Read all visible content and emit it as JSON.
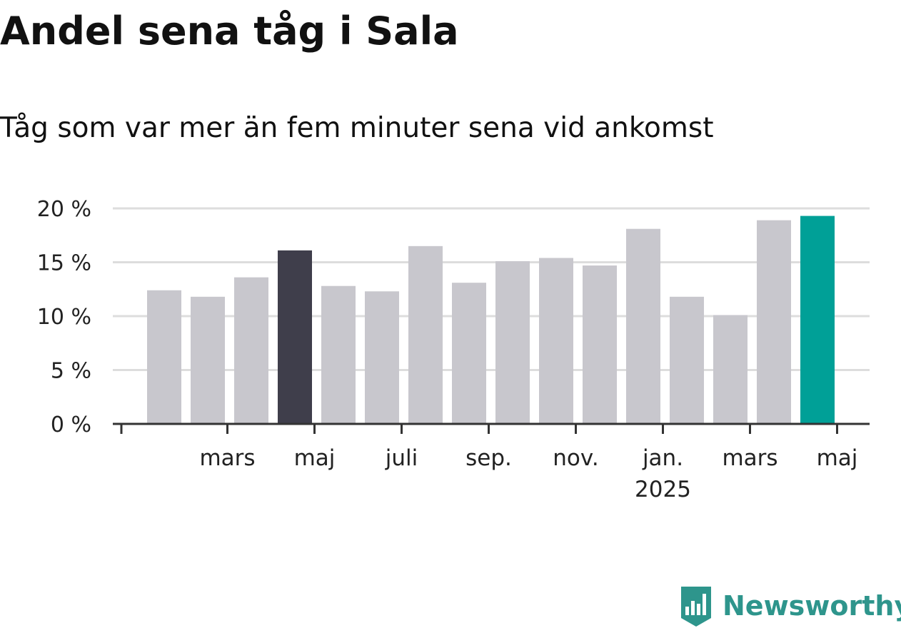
{
  "title": "Andel sena tåg i Sala",
  "subtitle": "Tåg som var mer än fem minuter sena vid ankomst",
  "brand": {
    "name": "Newsworthy",
    "icon": "newsworthy-logo-icon",
    "color": "#2e958c"
  },
  "colors": {
    "default_bar": "#c8c7cd",
    "highlight_bar": "#3f3e4b",
    "latest_bar": "#00a097",
    "grid": "#dddddd",
    "axis": "#333333"
  },
  "chart_data": {
    "type": "bar",
    "categories": [
      "2024-02",
      "2024-03",
      "2024-04",
      "2024-05",
      "2024-06",
      "2024-07",
      "2024-08",
      "2024-09",
      "2024-10",
      "2024-11",
      "2024-12",
      "2025-01",
      "2025-02",
      "2025-03",
      "2025-04",
      "2025-05"
    ],
    "values": [
      12.4,
      11.8,
      13.6,
      16.1,
      12.8,
      12.3,
      16.5,
      13.1,
      15.1,
      15.4,
      14.7,
      18.1,
      11.8,
      10.1,
      18.9,
      19.3
    ],
    "highlight": {
      "2024-05": "#3f3e4b",
      "2025-05": "#00a097"
    },
    "ylim": [
      0,
      20
    ],
    "yticks": [
      {
        "value": 0,
        "label": "0 %"
      },
      {
        "value": 5,
        "label": "5 %"
      },
      {
        "value": 10,
        "label": "10 %"
      },
      {
        "value": 15,
        "label": "15 %"
      },
      {
        "value": 20,
        "label": "20 %"
      }
    ],
    "xticks": [
      {
        "at": "2024-03",
        "label": "mars"
      },
      {
        "at": "2024-05",
        "label": "maj"
      },
      {
        "at": "2024-07",
        "label": "juli"
      },
      {
        "at": "2024-09",
        "label": "sep."
      },
      {
        "at": "2024-11",
        "label": "nov."
      },
      {
        "at": "2025-01",
        "label": "jan.",
        "sublabel": "2025"
      },
      {
        "at": "2025-03",
        "label": "mars"
      },
      {
        "at": "2025-05",
        "label": "maj"
      }
    ],
    "grid": true,
    "xlabel": "",
    "ylabel": ""
  }
}
